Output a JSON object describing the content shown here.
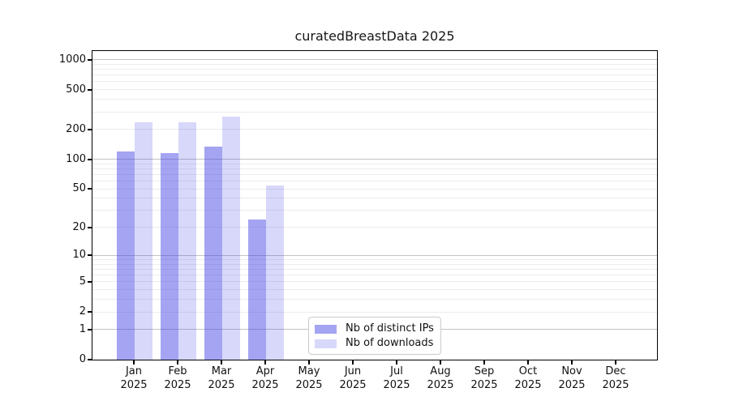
{
  "chart_data": {
    "type": "bar",
    "title": "curatedBreastData 2025",
    "x_tick_year": "2025",
    "categories": [
      "Jan",
      "Feb",
      "Mar",
      "Apr",
      "May",
      "Jun",
      "Jul",
      "Aug",
      "Sep",
      "Oct",
      "Nov",
      "Dec"
    ],
    "series": [
      {
        "name": "Nb of distinct IPs",
        "values": [
          120,
          115,
          135,
          24,
          0,
          0,
          0,
          0,
          0,
          0,
          0,
          0
        ],
        "bar_fill": "rgba(62,62,230,0.47)",
        "legend_color": "#a4a4f3"
      },
      {
        "name": "Nb of downloads",
        "values": [
          237,
          237,
          270,
          54,
          0,
          0,
          0,
          0,
          0,
          0,
          0,
          0
        ],
        "bar_fill": "rgba(62,62,230,0.20)",
        "legend_color": "#d8d8fa"
      }
    ],
    "xlabel": "",
    "ylabel": "",
    "yscale": "log1p",
    "ylim": [
      0,
      1220
    ],
    "yticks": [
      0,
      1,
      2,
      5,
      10,
      20,
      50,
      100,
      200,
      500,
      1000
    ],
    "grid": {
      "major_values": [
        1,
        10,
        100,
        1000
      ],
      "minor_values": [
        2,
        3,
        4,
        5,
        6,
        7,
        8,
        9,
        20,
        30,
        40,
        50,
        60,
        70,
        80,
        90,
        200,
        300,
        400,
        500,
        600,
        700,
        800,
        900
      ],
      "major_color": "#c2c2c2",
      "minor_color": "#ececec"
    },
    "legend": {
      "position": "lower center",
      "items": [
        "Nb of distinct IPs",
        "Nb of downloads"
      ]
    }
  },
  "colors": {
    "spine": "#000000",
    "text": "#111111",
    "legend_border": "#cbcbcb",
    "background": "#ffffff"
  }
}
